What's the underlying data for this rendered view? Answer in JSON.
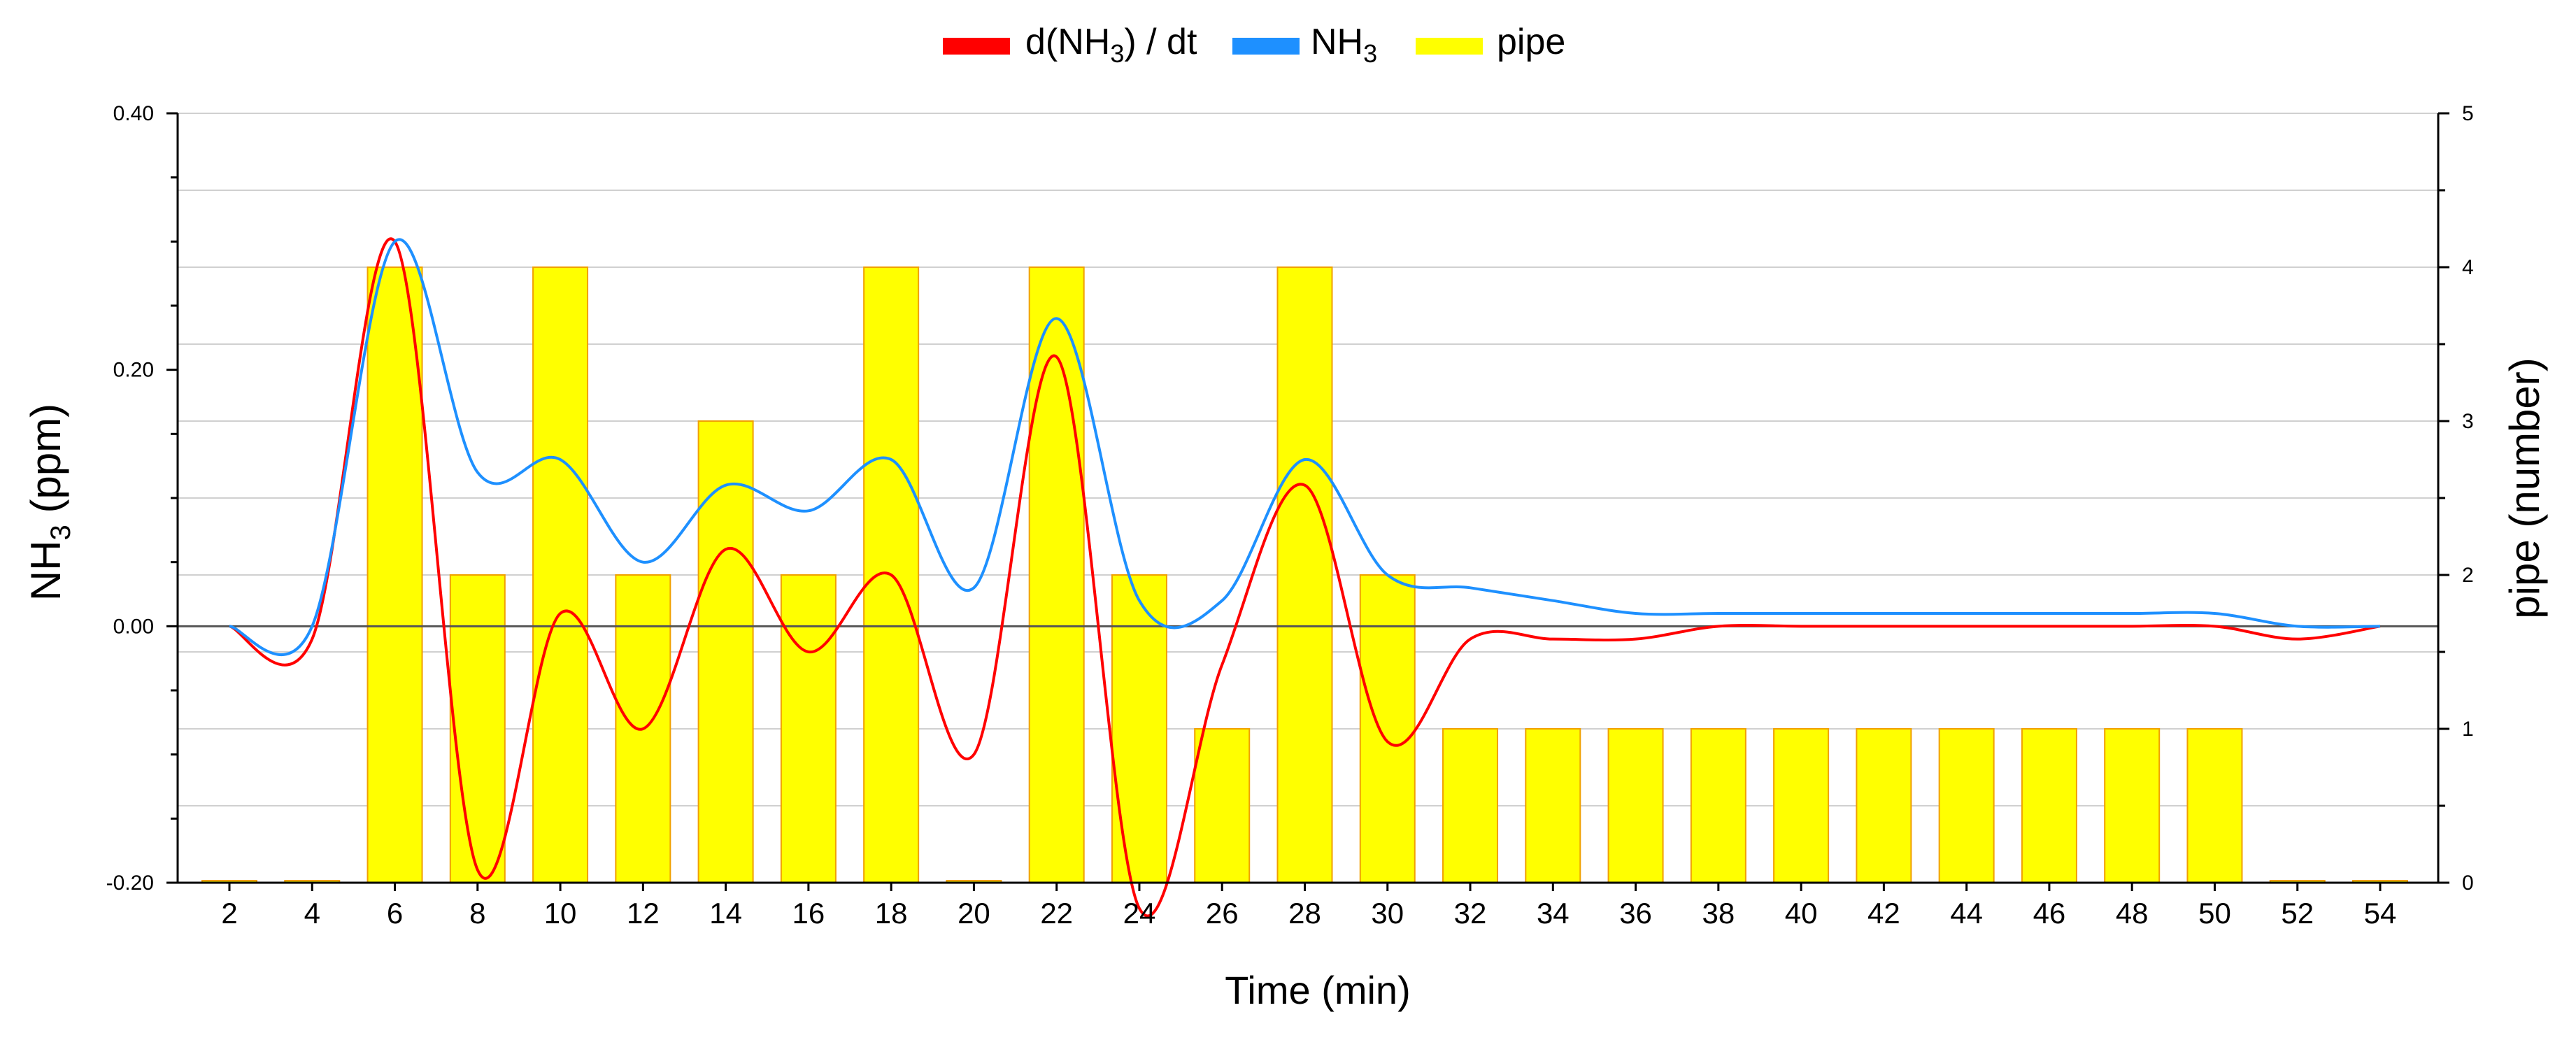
{
  "chart_data": {
    "type": "bar+line",
    "x_title": "Time (min)",
    "y_left_title_main": "NH",
    "y_left_title_sub": "3",
    "y_left_title_tail": " (ppm)",
    "y_right_title": "pipe (number)",
    "x": [
      2,
      4,
      6,
      8,
      10,
      12,
      14,
      16,
      18,
      20,
      22,
      24,
      26,
      28,
      30,
      32,
      34,
      36,
      38,
      40,
      42,
      44,
      46,
      48,
      50,
      52,
      54
    ],
    "x_tick_labels": [
      "2",
      "4",
      "6",
      "8",
      "10",
      "12",
      "14",
      "16",
      "18",
      "20",
      "22",
      "24",
      "26",
      "28",
      "30",
      "32",
      "34",
      "36",
      "38",
      "40",
      "42",
      "44",
      "46",
      "48",
      "50",
      "52",
      "54"
    ],
    "y_left": {
      "min": -0.2,
      "max": 0.4,
      "ticks": [
        -0.2,
        0.0,
        0.2,
        0.4
      ],
      "tick_labels": [
        "-0.20",
        "0.00",
        "0.20",
        "0.40"
      ]
    },
    "y_right": {
      "min": 0,
      "max": 5,
      "ticks": [
        0,
        1,
        2,
        3,
        4,
        5
      ],
      "tick_labels": [
        "0",
        "1",
        "2",
        "3",
        "4",
        "5"
      ]
    },
    "legend": [
      {
        "id": "dnh3",
        "main": "d(NH",
        "sub": "3",
        "tail": ") / dt",
        "color": "#ff0000"
      },
      {
        "id": "nh3",
        "main": "NH",
        "sub": "3",
        "tail": "",
        "color": "#1e90ff"
      },
      {
        "id": "pipe",
        "main": "pipe",
        "sub": "",
        "tail": "",
        "color": "#ffff00"
      }
    ],
    "series": [
      {
        "name": "pipe",
        "axis": "right",
        "kind": "bar",
        "fill": "#ffff00",
        "stroke": "#f0a000",
        "values": [
          0,
          0,
          4,
          2,
          4,
          2,
          3,
          2,
          4,
          0,
          4,
          2,
          1,
          4,
          2,
          1,
          1,
          1,
          1,
          1,
          1,
          1,
          1,
          1,
          1,
          0,
          0
        ]
      },
      {
        "name": "d(NH3) / dt",
        "axis": "left",
        "kind": "line",
        "color": "#ff0000",
        "values": [
          0.0,
          -0.01,
          0.3,
          -0.19,
          0.01,
          -0.08,
          0.06,
          -0.02,
          0.04,
          -0.1,
          0.21,
          -0.22,
          -0.03,
          0.11,
          -0.09,
          -0.01,
          -0.01,
          -0.01,
          0.0,
          0.0,
          0.0,
          0.0,
          0.0,
          0.0,
          0.0,
          -0.01,
          0.0
        ]
      },
      {
        "name": "NH3",
        "axis": "left",
        "kind": "line",
        "color": "#1e90ff",
        "values": [
          0.0,
          0.0,
          0.3,
          0.12,
          0.13,
          0.05,
          0.11,
          0.09,
          0.13,
          0.03,
          0.24,
          0.02,
          0.02,
          0.13,
          0.04,
          0.03,
          0.02,
          0.01,
          0.01,
          0.01,
          0.01,
          0.01,
          0.01,
          0.01,
          0.01,
          0.0,
          0.0
        ]
      }
    ]
  }
}
